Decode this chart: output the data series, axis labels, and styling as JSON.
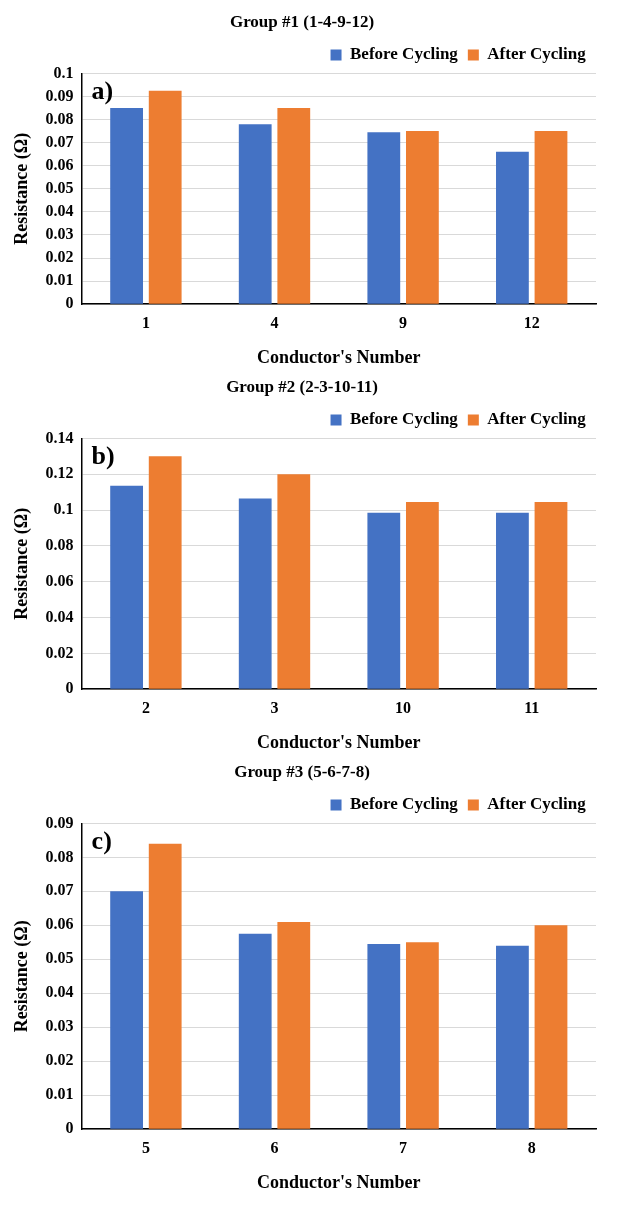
{
  "chart_data": [
    {
      "type": "bar",
      "title": "Group #1 (1-4-9-12)",
      "xlabel": "Conductor's Number",
      "ylabel": "Resistance (Ω)",
      "categories": [
        "1",
        "4",
        "9",
        "12"
      ],
      "series": [
        {
          "name": "Before Cycling",
          "color": "#4472c4",
          "values": [
            0.085,
            0.078,
            0.0745,
            0.066
          ]
        },
        {
          "name": "After Cycling",
          "color": "#ed7d31",
          "values": [
            0.0925,
            0.085,
            0.075,
            0.075
          ]
        }
      ],
      "ylim": [
        0,
        0.1
      ],
      "yticks": [
        0,
        0.01,
        0.02,
        0.03,
        0.04,
        0.05,
        0.06,
        0.07,
        0.08,
        0.09,
        0.1
      ],
      "grid": "y",
      "legend": "top right",
      "annotations": [
        "a)"
      ]
    },
    {
      "type": "bar",
      "title": "Group #2 (2-3-10-11)",
      "xlabel": "Conductor's Number",
      "ylabel": "Resistance (Ω)",
      "categories": [
        "2",
        "3",
        "10",
        "11"
      ],
      "series": [
        {
          "name": "Before Cycling",
          "color": "#4472c4",
          "values": [
            0.1135,
            0.1065,
            0.0985,
            0.0985
          ]
        },
        {
          "name": "After Cycling",
          "color": "#ed7d31",
          "values": [
            0.13,
            0.12,
            0.1045,
            0.1045
          ]
        }
      ],
      "ylim": [
        0,
        0.14
      ],
      "yticks": [
        0,
        0.02,
        0.04,
        0.06,
        0.08,
        0.1,
        0.12,
        0.14
      ],
      "grid": "y",
      "legend": "top right",
      "annotations": [
        "b)"
      ]
    },
    {
      "type": "bar",
      "title": "Group #3 (5-6-7-8)",
      "xlabel": "Conductor's Number",
      "ylabel": "Resistance (Ω)",
      "categories": [
        "5",
        "6",
        "7",
        "8"
      ],
      "series": [
        {
          "name": "Before Cycling",
          "color": "#4472c4",
          "values": [
            0.07,
            0.0575,
            0.0545,
            0.054
          ]
        },
        {
          "name": "After Cycling",
          "color": "#ed7d31",
          "values": [
            0.084,
            0.061,
            0.055,
            0.06
          ]
        }
      ],
      "ylim": [
        0,
        0.09
      ],
      "yticks": [
        0,
        0.01,
        0.02,
        0.03,
        0.04,
        0.05,
        0.06,
        0.07,
        0.08,
        0.09
      ],
      "grid": "y",
      "legend": "top right",
      "annotations": [
        "c)"
      ]
    }
  ]
}
